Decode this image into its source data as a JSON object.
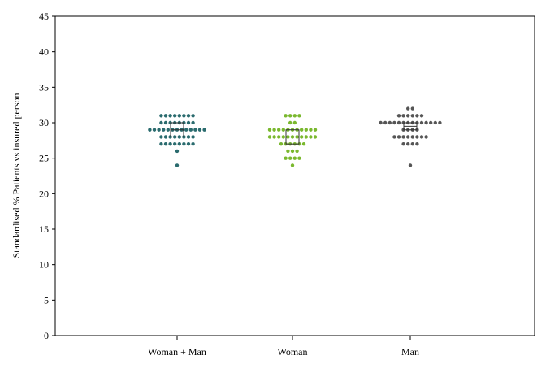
{
  "chart_data": {
    "type": "scatter",
    "subtype": "beeswarm-dotplot",
    "title": "",
    "xlabel": "",
    "ylabel": "Standardised % Patients vs insured person",
    "ylim": [
      0,
      45
    ],
    "yticks": [
      0,
      5,
      10,
      15,
      20,
      25,
      30,
      35,
      40,
      45
    ],
    "grid": false,
    "legend": "none",
    "categories": [
      "Woman + Man",
      "Woman",
      "Man"
    ],
    "series": [
      {
        "category": "Woman + Man",
        "color": "#2a6b6e",
        "box": {
          "q1": 28,
          "median": 29,
          "q3": 30
        },
        "bins": [
          {
            "y": 31,
            "count": 8
          },
          {
            "y": 30,
            "count": 8
          },
          {
            "y": 29,
            "count": 13
          },
          {
            "y": 28,
            "count": 8
          },
          {
            "y": 27,
            "count": 8
          },
          {
            "y": 26,
            "count": 1
          },
          {
            "y": 24,
            "count": 1
          }
        ]
      },
      {
        "category": "Woman",
        "color": "#7ab82e",
        "box": {
          "q1": 27,
          "median": 28,
          "q3": 29
        },
        "bins": [
          {
            "y": 31,
            "count": 4
          },
          {
            "y": 30,
            "count": 2
          },
          {
            "y": 29,
            "count": 11
          },
          {
            "y": 28,
            "count": 11
          },
          {
            "y": 27,
            "count": 6
          },
          {
            "y": 26,
            "count": 3
          },
          {
            "y": 25,
            "count": 4
          },
          {
            "y": 24,
            "count": 1
          }
        ]
      },
      {
        "category": "Man",
        "color": "#555555",
        "box": {
          "q1": 29,
          "median": 29.5,
          "q3": 30
        },
        "bins": [
          {
            "y": 32,
            "count": 2
          },
          {
            "y": 31,
            "count": 6
          },
          {
            "y": 30,
            "count": 14
          },
          {
            "y": 29,
            "count": 4
          },
          {
            "y": 28,
            "count": 8
          },
          {
            "y": 27,
            "count": 4
          },
          {
            "y": 24,
            "count": 1
          }
        ]
      }
    ]
  }
}
